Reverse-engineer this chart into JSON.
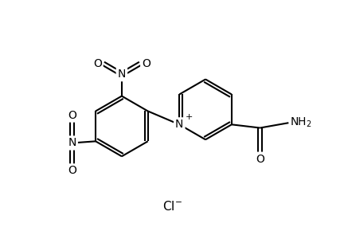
{
  "background_color": "#ffffff",
  "line_color": "#000000",
  "line_width": 1.5,
  "font_size": 9,
  "figsize": [
    4.32,
    3.0
  ],
  "dpi": 100,
  "xlim": [
    0,
    10
  ],
  "ylim": [
    0,
    7
  ]
}
